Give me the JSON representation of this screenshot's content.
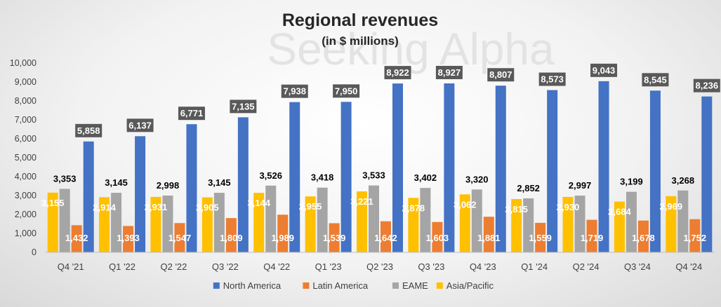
{
  "chart_data": {
    "type": "bar",
    "title": "Regional revenues",
    "subtitle": "(in $ millions)",
    "watermark": "Seeking Alpha",
    "categories": [
      "Q4 '21",
      "Q1 '22",
      "Q2 '22",
      "Q3 '22",
      "Q4 '22",
      "Q1 '23",
      "Q2 '23",
      "Q3 '23",
      "Q4 '23",
      "Q1 '24",
      "Q2 '24",
      "Q3 '24",
      "Q4 '24"
    ],
    "ylim": [
      0,
      10000
    ],
    "yticks": [
      0,
      1000,
      2000,
      3000,
      4000,
      5000,
      6000,
      7000,
      8000,
      9000,
      10000
    ],
    "ytick_labels": [
      "0",
      "1,000",
      "2,000",
      "3,000",
      "4,000",
      "5,000",
      "6,000",
      "7,000",
      "8,000",
      "9,000",
      "10,000"
    ],
    "grid": false,
    "legend_position": "bottom",
    "series": [
      {
        "name": "Asia/Pacific",
        "color": "#FFC000",
        "values": [
          3155,
          2914,
          2931,
          2905,
          3144,
          2955,
          3221,
          2878,
          3062,
          2815,
          2930,
          2684,
          2969
        ],
        "labels": [
          "3,155",
          "2,914",
          "2,931",
          "2,905",
          "3,144",
          "2,955",
          "3,221",
          "2,878",
          "3,062",
          "2,815",
          "2,930",
          "2,684",
          "2,969"
        ]
      },
      {
        "name": "EAME",
        "color": "#A5A5A5",
        "values": [
          3353,
          3145,
          2998,
          3145,
          3526,
          3418,
          3533,
          3402,
          3320,
          2852,
          2997,
          3199,
          3268
        ],
        "labels": [
          "3,353",
          "3,145",
          "2,998",
          "3,145",
          "3,526",
          "3,418",
          "3,533",
          "3,402",
          "3,320",
          "2,852",
          "2,997",
          "3,199",
          "3,268"
        ]
      },
      {
        "name": "Latin America",
        "color": "#ED7D31",
        "values": [
          1432,
          1393,
          1547,
          1809,
          1989,
          1539,
          1642,
          1603,
          1881,
          1559,
          1719,
          1678,
          1752
        ],
        "labels": [
          "1,432",
          "1,393",
          "1,547",
          "1,809",
          "1,989",
          "1,539",
          "1,642",
          "1,603",
          "1,881",
          "1,559",
          "1,719",
          "1,678",
          "1,752"
        ]
      },
      {
        "name": "North America",
        "color": "#4472C4",
        "values": [
          5858,
          6137,
          6771,
          7135,
          7938,
          7950,
          8922,
          8927,
          8807,
          8573,
          9043,
          8545,
          8236
        ],
        "labels": [
          "5,858",
          "6,137",
          "6,771",
          "7,135",
          "7,938",
          "7,950",
          "8,922",
          "8,927",
          "8,807",
          "8,573",
          "9,043",
          "8,545",
          "8,236"
        ]
      }
    ],
    "legend_order": [
      "North America",
      "Latin America",
      "EAME",
      "Asia/Pacific"
    ]
  }
}
